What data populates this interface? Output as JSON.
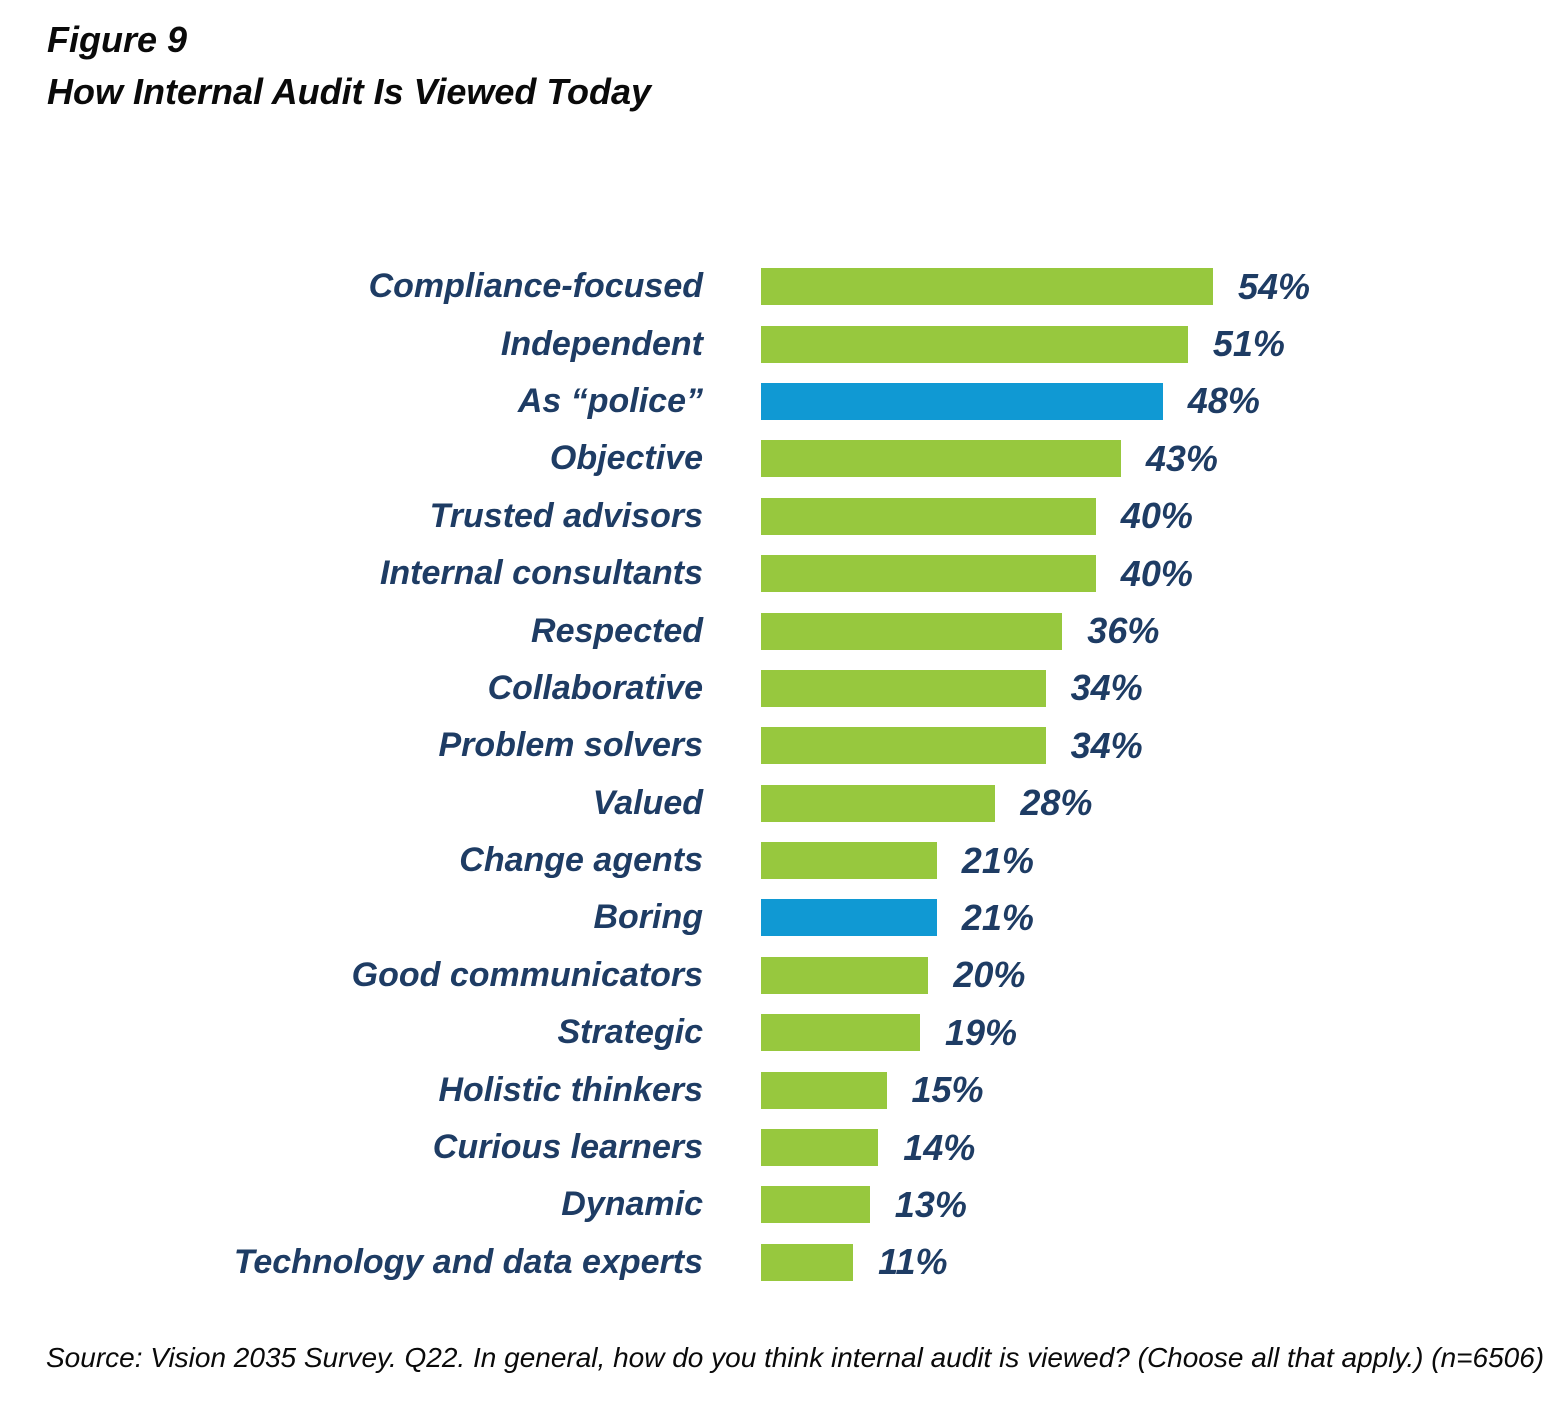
{
  "header": {
    "figure_label": "Figure 9",
    "title": "How Internal Audit Is Viewed Today"
  },
  "footer": {
    "source_note": "Source: Vision 2035 Survey. Q22. In general, how do you think internal audit is viewed? (Choose all that apply.) (n=6506)"
  },
  "colors": {
    "green": "#97c83e",
    "blue": "#1099d3",
    "navy": "#1e3c64"
  },
  "chart_data": {
    "type": "bar",
    "orientation": "horizontal",
    "title": "How Internal Audit Is Viewed Today",
    "xlabel": "",
    "ylabel": "",
    "xlim": [
      0,
      60
    ],
    "grid": false,
    "legend": false,
    "value_suffix": "%",
    "categories": [
      "Compliance-focused",
      "Independent",
      "As “police”",
      "Objective",
      "Trusted advisors",
      "Internal consultants",
      "Respected",
      "Collaborative",
      "Problem solvers",
      "Valued",
      "Change agents",
      "Boring",
      "Good communicators",
      "Strategic",
      "Holistic thinkers",
      "Curious learners",
      "Dynamic",
      "Technology and data experts"
    ],
    "values": [
      54,
      51,
      48,
      43,
      40,
      40,
      36,
      34,
      34,
      28,
      21,
      21,
      20,
      19,
      15,
      14,
      13,
      11
    ],
    "value_labels": [
      "54%",
      "51%",
      "48%",
      "43%",
      "40%",
      "40%",
      "36%",
      "34%",
      "34%",
      "28%",
      "21%",
      "21%",
      "20%",
      "19%",
      "15%",
      "14%",
      "13%",
      "11%"
    ],
    "bar_colors": [
      "green",
      "green",
      "blue",
      "green",
      "green",
      "green",
      "green",
      "green",
      "green",
      "green",
      "green",
      "blue",
      "green",
      "green",
      "green",
      "green",
      "green",
      "green"
    ],
    "highlighted_categories": [
      "As “police”",
      "Boring"
    ]
  }
}
